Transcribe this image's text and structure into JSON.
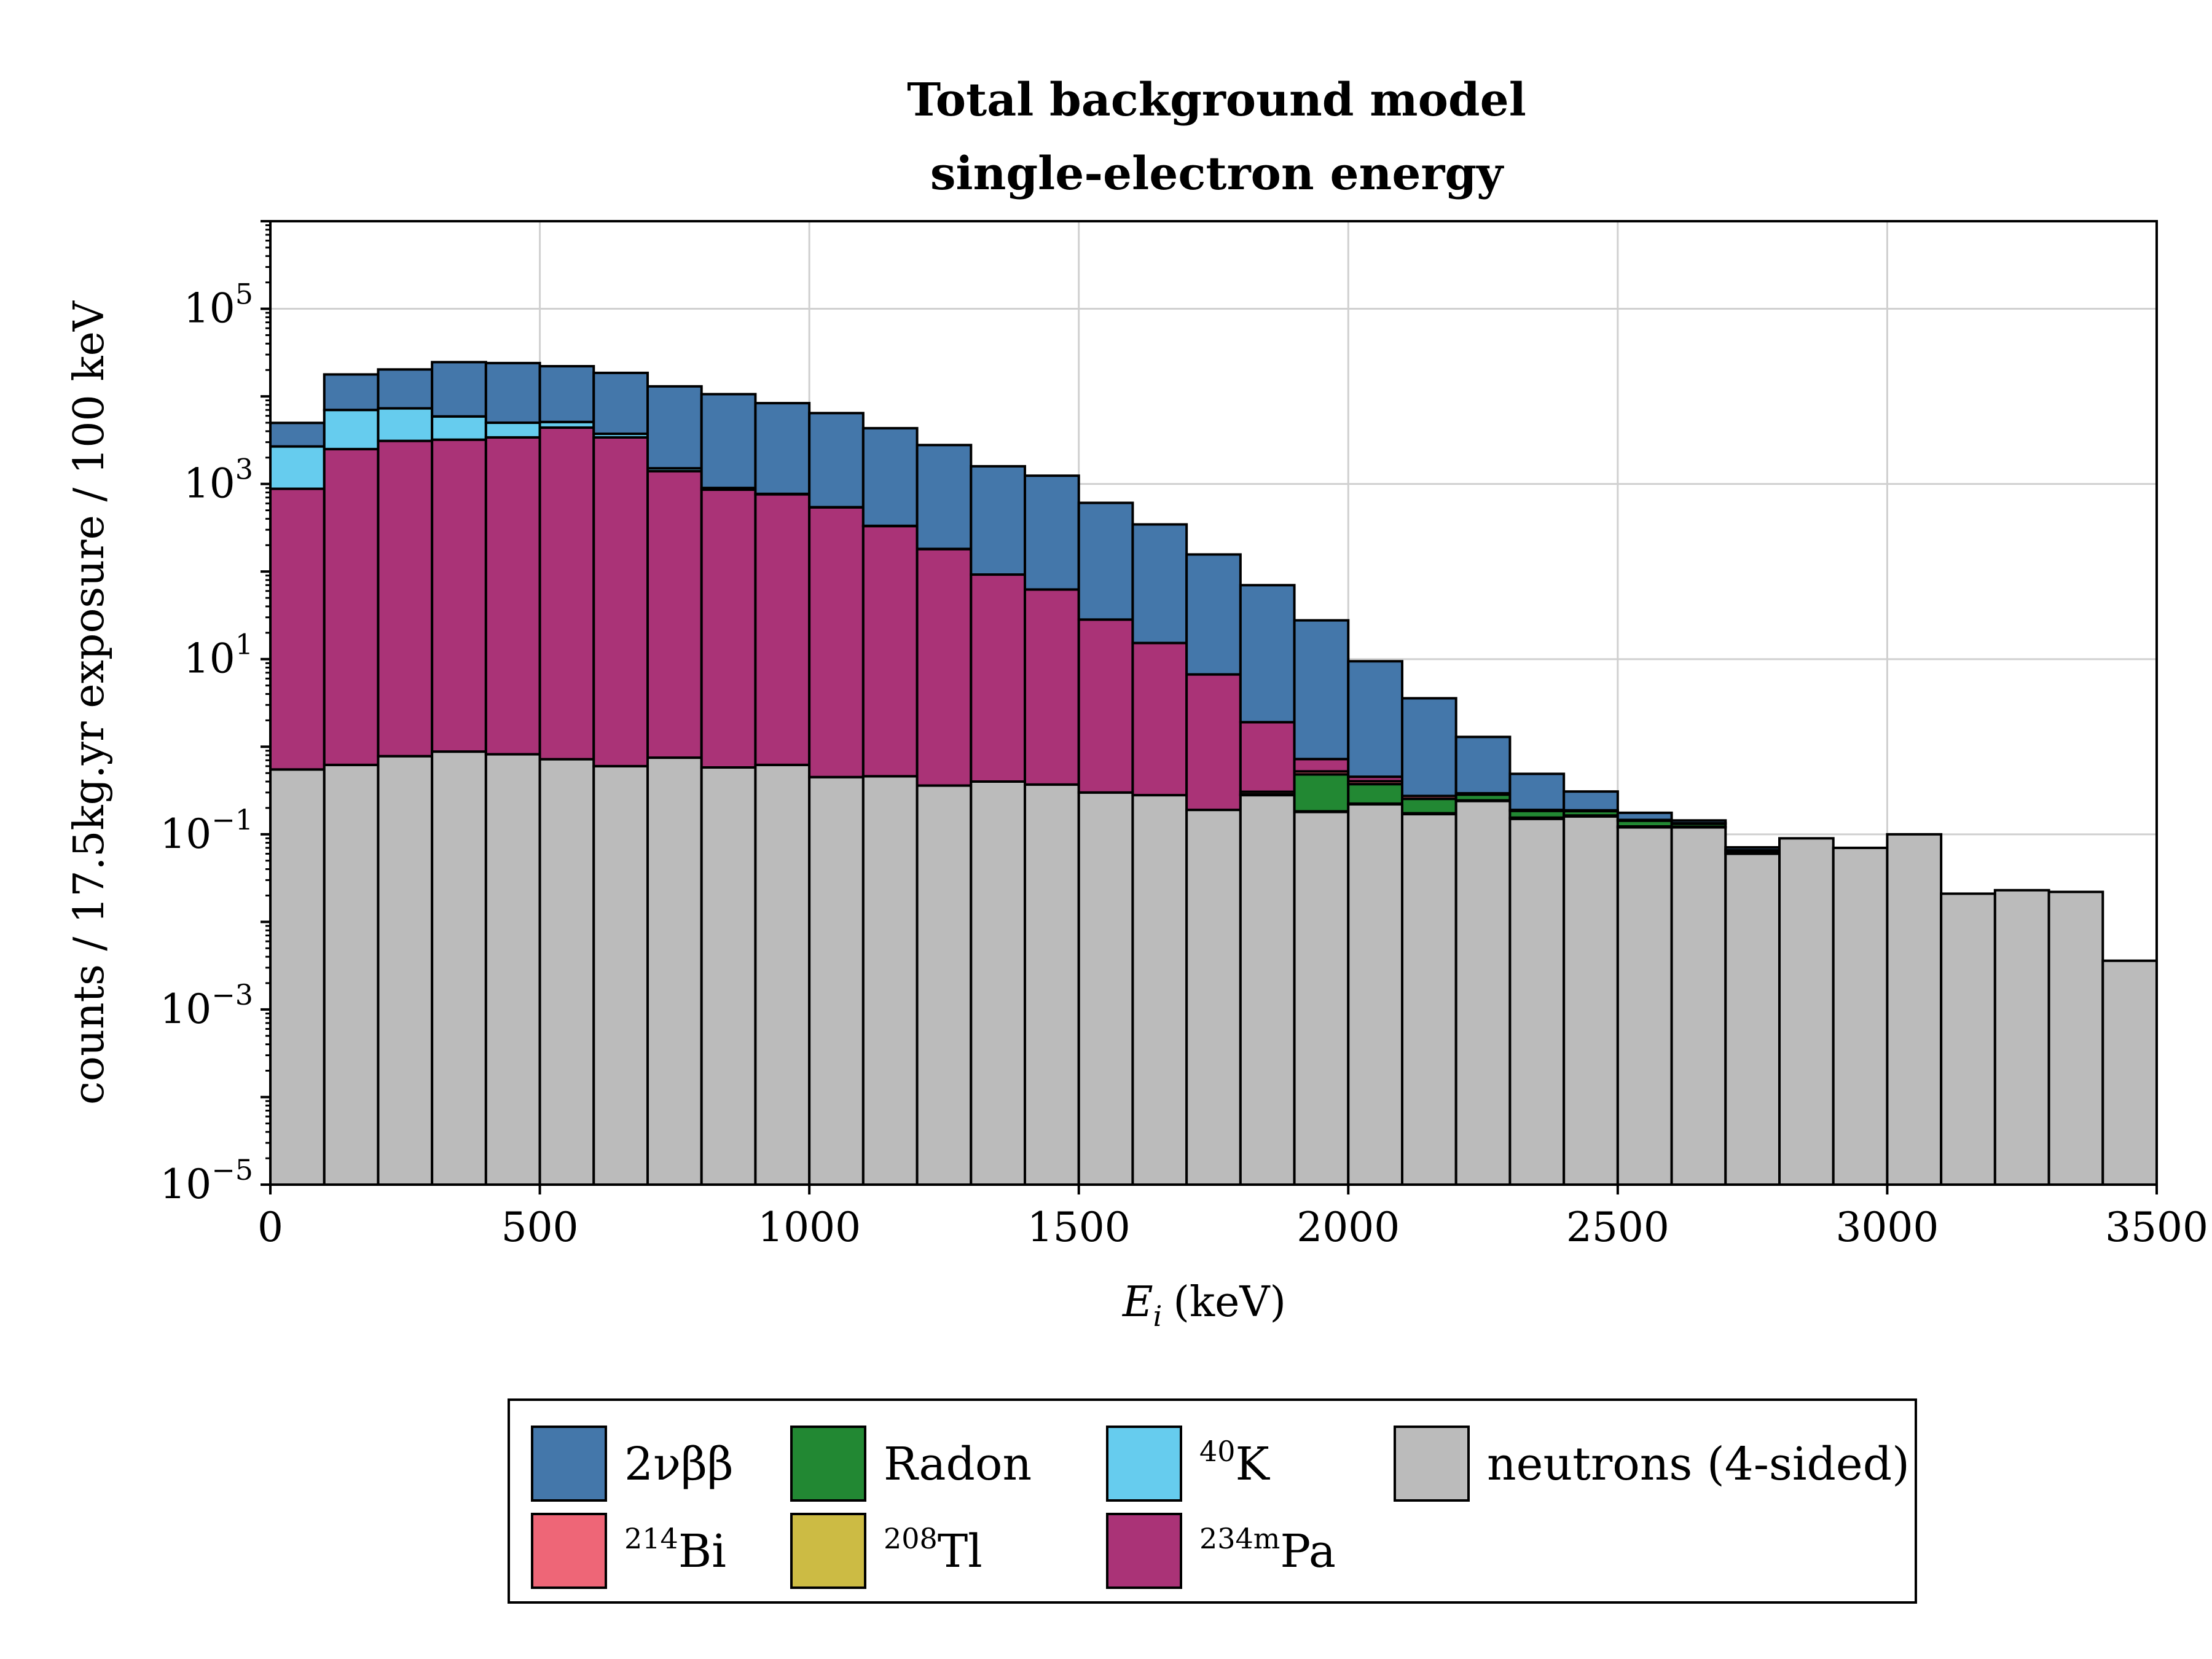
{
  "chart_data": {
    "type": "bar",
    "stacked": true,
    "title": "Total background model",
    "subtitle": "single-electron energy",
    "xlabel": "(keV)",
    "xlabel_symbol": "E",
    "xlabel_sub": "i",
    "ylabel": "counts / 17.5kg.yr exposure / 100 keV",
    "xlim": [
      0,
      3500
    ],
    "ylim_exp": [
      -5,
      6
    ],
    "yscale": "log",
    "grid": true,
    "x_ticks": [
      "0",
      "500",
      "1000",
      "1500",
      "2000",
      "2500",
      "3000",
      "3500"
    ],
    "y_ticks": [
      {
        "base": "10",
        "exp": "−5"
      },
      {
        "base": "10",
        "exp": "−3"
      },
      {
        "base": "10",
        "exp": "−1"
      },
      {
        "base": "10",
        "exp": "1"
      },
      {
        "base": "10",
        "exp": "3"
      },
      {
        "base": "10",
        "exp": "5"
      }
    ],
    "bin_edges": [
      0,
      100,
      200,
      300,
      400,
      500,
      600,
      700,
      800,
      900,
      1000,
      1100,
      1200,
      1300,
      1400,
      1500,
      1600,
      1700,
      1800,
      1900,
      2000,
      2100,
      2200,
      2300,
      2400,
      2500,
      2600,
      2700,
      2800,
      2900,
      3000,
      3100,
      3200,
      3300,
      3400,
      3500
    ],
    "legend_position": "below",
    "series": [
      {
        "name": "neutrons (4-sided)",
        "color": "#BBBBBB",
        "values": [
          0.55,
          0.62,
          0.78,
          0.88,
          0.82,
          0.72,
          0.6,
          0.75,
          0.58,
          0.62,
          0.45,
          0.46,
          0.36,
          0.4,
          0.37,
          0.3,
          0.28,
          0.19,
          0.28,
          0.18,
          0.22,
          0.17,
          0.24,
          0.15,
          0.16,
          0.12,
          0.12,
          0.06,
          0.09,
          0.07,
          0.1,
          0.021,
          0.023,
          0.022,
          0.0036
        ]
      },
      {
        "name": "²⁰⁸Tl",
        "color": "#CCBB44",
        "values": [
          0,
          0,
          0,
          0,
          0,
          0,
          0,
          0,
          0,
          0,
          0,
          0,
          0,
          0,
          0,
          0,
          0,
          0,
          0.002,
          0.003,
          0.004,
          0.004,
          0.004,
          0.005,
          0.004,
          0.003,
          0.002,
          0.001,
          0,
          0,
          0,
          0,
          0,
          0,
          0
        ]
      },
      {
        "name": "Radon",
        "color": "#228833",
        "values": [
          0,
          0,
          0,
          0,
          0,
          0,
          0,
          0,
          0,
          0,
          0,
          0,
          0,
          0,
          0,
          0,
          0,
          0,
          0.004,
          0.3,
          0.15,
          0.08,
          0.04,
          0.03,
          0.02,
          0.02,
          0.01,
          0.004,
          0,
          0,
          0,
          0,
          0,
          0,
          0
        ]
      },
      {
        "name": "²¹⁴Bi",
        "color": "#EE6677",
        "values": [
          0,
          0,
          0,
          0,
          0,
          0,
          0,
          0,
          0,
          0,
          0,
          0,
          0,
          0,
          0,
          0,
          0,
          0,
          0.02,
          0.04,
          0.03,
          0.02,
          0.01,
          0.005,
          0.004,
          0.003,
          0.002,
          0.001,
          0,
          0,
          0,
          0,
          0,
          0,
          0
        ]
      },
      {
        "name": "²³⁴ᵐPa",
        "color": "#AA3377",
        "values": [
          880,
          2500,
          3100,
          3200,
          3400,
          4400,
          3400,
          1400,
          860,
          760,
          540,
          330,
          180,
          92,
          62,
          28,
          15,
          6.5,
          1.6,
          0.2,
          0.05,
          0,
          0,
          0,
          0,
          0,
          0,
          0,
          0,
          0,
          0,
          0,
          0,
          0,
          0
        ]
      },
      {
        "name": "⁴⁰K",
        "color": "#66CCEE",
        "values": [
          1800,
          4500,
          4200,
          2700,
          1600,
          700,
          340,
          110,
          40,
          10,
          3,
          2,
          1,
          0,
          0,
          0,
          0,
          0,
          0,
          0,
          0,
          0,
          0,
          0,
          0,
          0,
          0,
          0,
          0,
          0,
          0,
          0,
          0,
          0,
          0
        ]
      },
      {
        "name": "2νββ",
        "color": "#4477AA",
        "values": [
          2300,
          10800,
          13000,
          18700,
          19000,
          17000,
          14800,
          11500,
          9700,
          7600,
          5900,
          4000,
          2600,
          1500,
          1180,
          580,
          330,
          150,
          68,
          27,
          9,
          3.3,
          1,
          0.3,
          0.12,
          0.03,
          0.01,
          0.005,
          0,
          0,
          0,
          0,
          0,
          0,
          0
        ]
      }
    ]
  },
  "legend": {
    "items": [
      {
        "label": "2νββ",
        "color": "#4477AA"
      },
      {
        "label": "Radon",
        "color": "#228833"
      },
      {
        "label": "K",
        "sup": "40",
        "color": "#66CCEE"
      },
      {
        "label": "neutrons (4-sided)",
        "color": "#BBBBBB"
      },
      {
        "label": "Bi",
        "sup": "214",
        "color": "#EE6677"
      },
      {
        "label": "Tl",
        "sup": "208",
        "color": "#CCBB44"
      },
      {
        "label": "Pa",
        "sup": "234m",
        "color": "#AA3377"
      }
    ]
  }
}
